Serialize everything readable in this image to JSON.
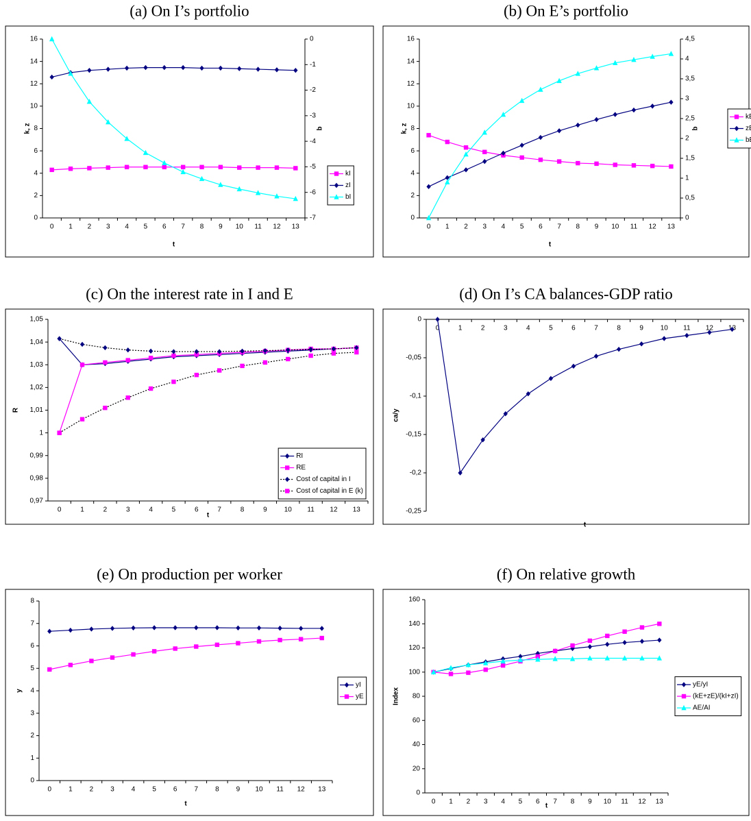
{
  "chart_data": [
    {
      "type": "line",
      "title": "(a) On I’s portfolio",
      "xlabel": "t",
      "ylabel": "k, z",
      "y2label": "b",
      "categories": [
        0,
        1,
        2,
        3,
        4,
        5,
        6,
        7,
        8,
        9,
        10,
        11,
        12,
        13
      ],
      "ylim": [
        0,
        16
      ],
      "yticks": [
        0,
        2,
        4,
        6,
        8,
        10,
        12,
        14,
        16
      ],
      "y2lim": [
        -7,
        0
      ],
      "y2ticks": [
        0,
        -1,
        -2,
        -3,
        -4,
        -5,
        -6,
        -7
      ],
      "legend": "right",
      "series": [
        {
          "name": "kI",
          "color": "#ff00ff",
          "marker": "square",
          "values": [
            4.3,
            4.4,
            4.45,
            4.5,
            4.55,
            4.55,
            4.55,
            4.55,
            4.55,
            4.55,
            4.5,
            4.5,
            4.5,
            4.45
          ]
        },
        {
          "name": "zI",
          "color": "#000080",
          "marker": "diamond",
          "values": [
            12.6,
            13.0,
            13.2,
            13.3,
            13.4,
            13.45,
            13.45,
            13.45,
            13.4,
            13.4,
            13.35,
            13.3,
            13.25,
            13.2
          ]
        },
        {
          "name": "bI",
          "color": "#00ffff",
          "marker": "triangle",
          "axis": "y2",
          "values": [
            0,
            -1.35,
            -2.45,
            -3.25,
            -3.9,
            -4.45,
            -4.85,
            -5.2,
            -5.47,
            -5.7,
            -5.87,
            -6.02,
            -6.15,
            -6.25
          ]
        }
      ]
    },
    {
      "type": "line",
      "title": "(b) On E’s portfolio",
      "xlabel": "t",
      "ylabel": "k, z",
      "y2label": "b",
      "categories": [
        0,
        1,
        2,
        3,
        4,
        5,
        6,
        7,
        8,
        9,
        10,
        11,
        12,
        13
      ],
      "ylim": [
        0,
        16
      ],
      "yticks": [
        0,
        2,
        4,
        6,
        8,
        10,
        12,
        14,
        16
      ],
      "y2lim": [
        0,
        4.5
      ],
      "y2ticks": [
        0,
        {
          "value": 0.5,
          "label": "0,5"
        },
        1,
        {
          "value": 1.5,
          "label": "1,5"
        },
        2,
        {
          "value": 2.5,
          "label": "2,5"
        },
        3,
        {
          "value": 3.5,
          "label": "3,5"
        },
        4,
        {
          "value": 4.5,
          "label": "4,5"
        }
      ],
      "legend": "right",
      "series": [
        {
          "name": "kE",
          "color": "#ff00ff",
          "marker": "square",
          "values": [
            7.4,
            6.8,
            6.3,
            5.9,
            5.6,
            5.4,
            5.2,
            5.05,
            4.9,
            4.85,
            4.75,
            4.7,
            4.65,
            4.6
          ]
        },
        {
          "name": "zE",
          "color": "#000080",
          "marker": "diamond",
          "values": [
            2.8,
            3.6,
            4.3,
            5.05,
            5.8,
            6.5,
            7.2,
            7.8,
            8.3,
            8.8,
            9.25,
            9.65,
            10.0,
            10.35
          ]
        },
        {
          "name": "bE",
          "color": "#00ffff",
          "marker": "triangle",
          "axis": "y2",
          "values": [
            0,
            0.9,
            1.6,
            2.15,
            2.6,
            2.95,
            3.23,
            3.45,
            3.63,
            3.77,
            3.9,
            3.98,
            4.06,
            4.13
          ]
        }
      ]
    },
    {
      "type": "line",
      "title": "(c) On the interest rate in I and E",
      "xlabel": "t",
      "ylabel": "R",
      "categories": [
        0,
        1,
        2,
        3,
        4,
        5,
        6,
        7,
        8,
        9,
        10,
        11,
        12,
        13
      ],
      "ylim": [
        0.97,
        1.05
      ],
      "yticks": [
        {
          "value": 0.97,
          "label": "0,97"
        },
        {
          "value": 0.98,
          "label": "0,98"
        },
        {
          "value": 0.99,
          "label": "0,99"
        },
        1,
        {
          "value": 1.01,
          "label": "1,01"
        },
        {
          "value": 1.02,
          "label": "1,02"
        },
        {
          "value": 1.03,
          "label": "1,03"
        },
        {
          "value": 1.04,
          "label": "1,04"
        },
        {
          "value": 1.05,
          "label": "1,05"
        }
      ],
      "legend": "lower right",
      "series": [
        {
          "name": "RI",
          "color": "#000080",
          "marker": "diamond",
          "values": [
            1.0415,
            1.03,
            1.0305,
            1.0315,
            1.0325,
            1.0335,
            1.034,
            1.0345,
            1.035,
            1.0355,
            1.036,
            1.0365,
            1.037,
            1.0375
          ]
        },
        {
          "name": "RE",
          "color": "#ff00ff",
          "marker": "square",
          "values": [
            1.0,
            1.03,
            1.031,
            1.032,
            1.033,
            1.034,
            1.0345,
            1.035,
            1.0355,
            1.036,
            1.0365,
            1.037,
            1.037,
            1.0375
          ]
        },
        {
          "name": "Cost of capital in I",
          "color": "#000080",
          "marker": "diamond",
          "style": "dotted",
          "values": [
            1.0415,
            1.039,
            1.0375,
            1.0365,
            1.036,
            1.0358,
            1.0358,
            1.0358,
            1.036,
            1.0362,
            1.0365,
            1.0368,
            1.037,
            1.0375
          ]
        },
        {
          "name": "Cost of capital in E (k)",
          "color": "#ff00ff",
          "marker": "square",
          "style": "dotted",
          "values": [
            1.0,
            1.006,
            1.011,
            1.0155,
            1.0195,
            1.0225,
            1.0255,
            1.0275,
            1.0295,
            1.031,
            1.0325,
            1.034,
            1.035,
            1.0355
          ]
        }
      ]
    },
    {
      "type": "line",
      "title": "(d) On I’s CA balances-GDP ratio",
      "xlabel": "t",
      "ylabel": "ca/y",
      "categories": [
        0,
        1,
        2,
        3,
        4,
        5,
        6,
        7,
        8,
        9,
        10,
        11,
        12,
        13
      ],
      "ylim": [
        -0.25,
        0
      ],
      "yticks": [
        0,
        {
          "value": -0.05,
          "label": "-0,05"
        },
        {
          "value": -0.1,
          "label": "-0,1"
        },
        {
          "value": -0.15,
          "label": "-0,15"
        },
        {
          "value": -0.2,
          "label": "-0,2"
        },
        {
          "value": -0.25,
          "label": "-0,25"
        }
      ],
      "series": [
        {
          "name": "ca/y",
          "color": "#000080",
          "marker": "diamond",
          "values": [
            0,
            -0.2,
            -0.157,
            -0.123,
            -0.097,
            -0.077,
            -0.061,
            -0.048,
            -0.039,
            -0.032,
            -0.025,
            -0.021,
            -0.017,
            -0.013
          ]
        }
      ]
    },
    {
      "type": "line",
      "title": "(e) On production per worker",
      "xlabel": "t",
      "ylabel": "y",
      "categories": [
        0,
        1,
        2,
        3,
        4,
        5,
        6,
        7,
        8,
        9,
        10,
        11,
        12,
        13
      ],
      "ylim": [
        0,
        8
      ],
      "yticks": [
        0,
        1,
        2,
        3,
        4,
        5,
        6,
        7,
        8
      ],
      "legend": "right",
      "series": [
        {
          "name": "yI",
          "color": "#000080",
          "marker": "diamond",
          "values": [
            6.65,
            6.7,
            6.75,
            6.78,
            6.8,
            6.81,
            6.81,
            6.81,
            6.81,
            6.8,
            6.8,
            6.79,
            6.78,
            6.78
          ]
        },
        {
          "name": "yE",
          "color": "#ff00ff",
          "marker": "square",
          "values": [
            4.95,
            5.15,
            5.33,
            5.48,
            5.62,
            5.76,
            5.88,
            5.97,
            6.05,
            6.12,
            6.2,
            6.26,
            6.3,
            6.35
          ]
        }
      ]
    },
    {
      "type": "line",
      "title": "(f) On relative growth",
      "xlabel": "t",
      "ylabel": "Index",
      "categories": [
        0,
        1,
        2,
        3,
        4,
        5,
        6,
        7,
        8,
        9,
        10,
        11,
        12,
        13
      ],
      "ylim": [
        0,
        160
      ],
      "yticks": [
        0,
        20,
        40,
        60,
        80,
        100,
        120,
        140,
        160
      ],
      "legend": "right",
      "series": [
        {
          "name": "yE/yI",
          "color": "#000080",
          "marker": "diamond",
          "values": [
            100,
            103,
            106,
            108.5,
            111,
            113,
            115.5,
            117.5,
            119.5,
            121,
            123,
            124.5,
            125.5,
            126.5
          ]
        },
        {
          "name": "(kE+zE)/(kI+zI)",
          "color": "#ff00ff",
          "marker": "square",
          "values": [
            100,
            98.5,
            99.5,
            102,
            105.5,
            109,
            113,
            117.5,
            122,
            126,
            130,
            133.5,
            137,
            140
          ]
        },
        {
          "name": "AE/AI",
          "color": "#00ffff",
          "marker": "triangle",
          "values": [
            100,
            103.5,
            106,
            107.5,
            109,
            110,
            110.5,
            111,
            111,
            111.5,
            111.5,
            111.5,
            111.5,
            111.5
          ]
        }
      ]
    }
  ]
}
